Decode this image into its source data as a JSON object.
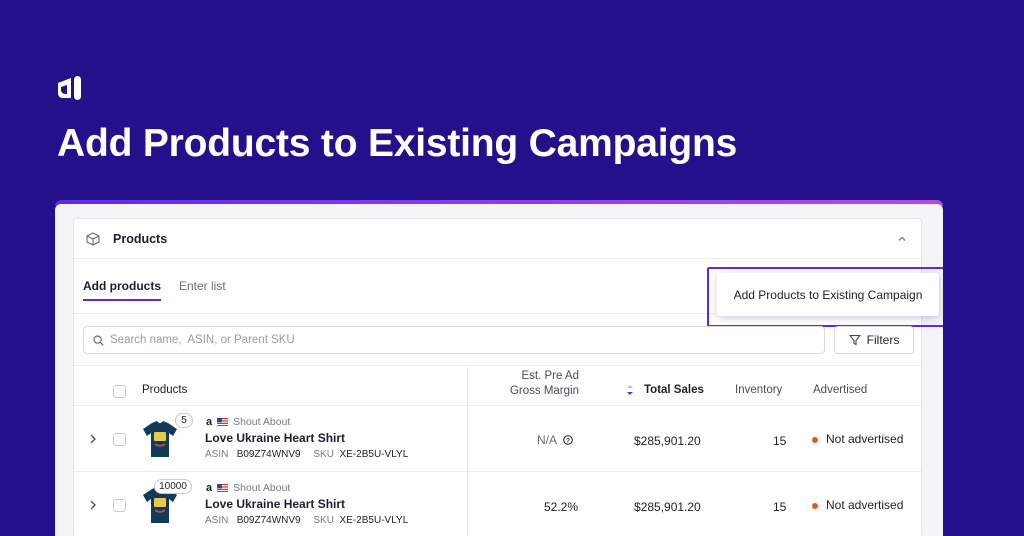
{
  "hero": {
    "title": "Add Products to Existing Campaigns",
    "logo_icon": "brand-logo-icon"
  },
  "colors": {
    "background": "#24108a",
    "accent": "#5a2be6",
    "status_dot": "#e8541a"
  },
  "panel": {
    "title": "Products",
    "header_icon": "box-icon",
    "collapse_icon": "chevron-up-icon"
  },
  "tabs": [
    {
      "label": "Add products",
      "active": true
    },
    {
      "label": "Enter list",
      "active": false
    }
  ],
  "actions": {
    "add_to_campaign_label": "Add Products to Existing Campaign",
    "filters_label": "Filters"
  },
  "search": {
    "placeholder": "Search name,  ASIN, or Parent SKU"
  },
  "table": {
    "headers": {
      "products": "Products",
      "margin_line1": "Est. Pre Ad",
      "margin_line2": "Gross Margin",
      "total_sales": "Total Sales",
      "inventory": "Inventory",
      "advertised": "Advertised"
    },
    "sort_column": "total_sales",
    "rows": [
      {
        "variant_count": "5",
        "store": "Shout About",
        "marketplace": "Amazon US",
        "name": "Love Ukraine Heart Shirt",
        "asin_label": "ASIN",
        "asin": "B09Z74WNV9",
        "sku_label": "SKU",
        "sku": "XE-2B5U-VLYL",
        "margin": "N/A",
        "margin_has_info": true,
        "total_sales": "$285,901.20",
        "inventory": "15",
        "advertised": "Not advertised"
      },
      {
        "variant_count": "10000",
        "store": "Shout About",
        "marketplace": "Amazon US",
        "name": "Love Ukraine Heart Shirt",
        "asin_label": "ASIN",
        "asin": "B09Z74WNV9",
        "sku_label": "SKU",
        "sku": "XE-2B5U-VLYL",
        "margin": "52.2%",
        "margin_has_info": false,
        "total_sales": "$285,901.20",
        "inventory": "15",
        "advertised": "Not advertised"
      }
    ]
  }
}
